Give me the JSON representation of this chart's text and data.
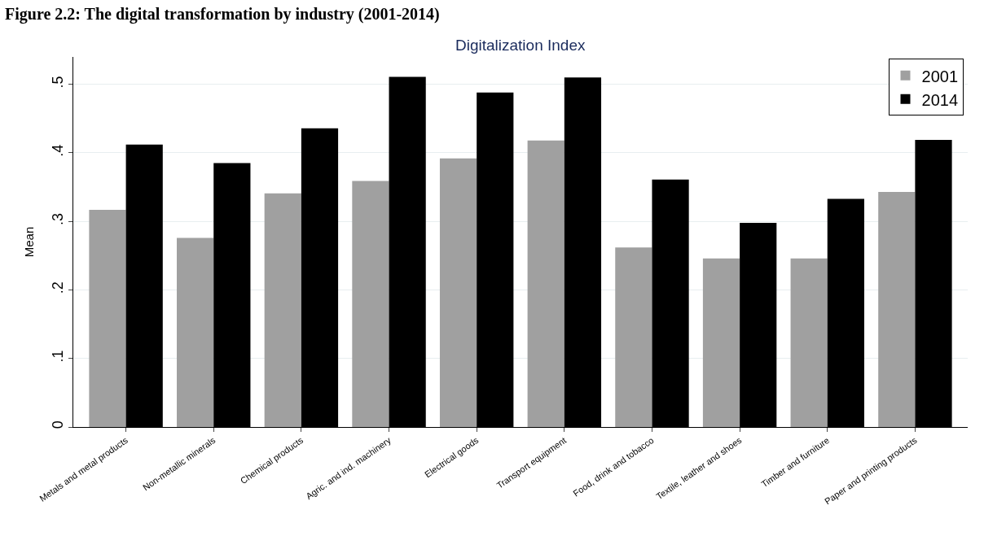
{
  "chart_data": {
    "type": "bar",
    "title": "Figure 2.2: The digital transformation by industry (2001-2014)",
    "subtitle": "Digitalization Index",
    "ylabel": "Mean",
    "categories": [
      "Metals and metal products",
      "Non-metallic minerals",
      "Chemical products",
      "Agric. and ind. machinery",
      "Electrical goods",
      "Transport equipment",
      "Food, drink and tobacco",
      "Textile, leather and shoes",
      "Timber and furniture",
      "Paper and printing products"
    ],
    "series": [
      {
        "name": "2001",
        "color": "#a0a0a0",
        "values": [
          0.317,
          0.276,
          0.341,
          0.359,
          0.392,
          0.418,
          0.262,
          0.246,
          0.246,
          0.343
        ]
      },
      {
        "name": "2014",
        "color": "#000000",
        "values": [
          0.412,
          0.385,
          0.436,
          0.511,
          0.488,
          0.51,
          0.361,
          0.298,
          0.333,
          0.419
        ]
      }
    ],
    "ylim": [
      0,
      0.54
    ],
    "yticks": [
      {
        "value": 0,
        "label": "0"
      },
      {
        "value": 0.1,
        "label": ".1"
      },
      {
        "value": 0.2,
        "label": ".2"
      },
      {
        "value": 0.3,
        "label": ".3"
      },
      {
        "value": 0.4,
        "label": ".4"
      },
      {
        "value": 0.5,
        "label": ".5"
      }
    ],
    "grid": "y",
    "legend": "top right"
  }
}
